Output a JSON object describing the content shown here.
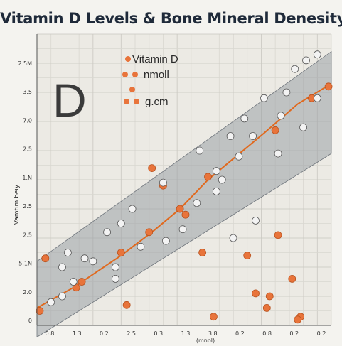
{
  "chart_data": {
    "type": "scatter",
    "title": "Vitamin D Levels & Bone Mineral Denesity",
    "ylabel": "Vamtim beiy",
    "xlabel": "(mnol)",
    "xtick_labels": [
      "0.8",
      "1.3",
      "0.2",
      "2.5",
      "0.3",
      "1.3",
      "3.8",
      "0.2",
      "0.8",
      "0.2",
      "0.2"
    ],
    "ytick_labels": [
      "2.5M",
      "3.5",
      "7.0",
      "2.5",
      "1.N",
      "2.5",
      "2.5",
      "5.1N",
      "2.0",
      "0"
    ],
    "ylim": [
      0,
      10
    ],
    "xlim": [
      0,
      10.5
    ],
    "grid": true,
    "legend_placement": "top-left",
    "legend": [
      "Vitamin D",
      "nmoll",
      "g.cm"
    ],
    "annotation_letter": "D",
    "colors": {
      "orange": "#e8743b",
      "white": "#f3f3f3",
      "line": "#e0691e",
      "band": "#9aa0a6"
    },
    "series": [
      {
        "name": "Vitamin D",
        "marker": "orange",
        "x": [
          0.1,
          1.4,
          3.0,
          4.0,
          5.1,
          6.1,
          8.5,
          9.8,
          10.4,
          0.3,
          1.6,
          4.1,
          4.5,
          5.3,
          5.9,
          6.3,
          7.5,
          7.8,
          8.2,
          8.6,
          9.1,
          9.4,
          3.2,
          8.3,
          9.3
        ],
        "y": [
          0.5,
          1.3,
          2.5,
          3.2,
          4.0,
          5.1,
          6.7,
          7.8,
          8.2,
          2.3,
          1.5,
          5.4,
          4.8,
          3.8,
          2.5,
          0.3,
          2.4,
          1.1,
          0.6,
          3.1,
          1.6,
          0.3,
          0.7,
          1.0,
          0.2
        ]
      },
      {
        "name": "",
        "marker": "white",
        "x": [
          0.5,
          0.9,
          1.3,
          2.0,
          2.5,
          3.0,
          3.7,
          4.5,
          4.6,
          5.2,
          5.8,
          6.4,
          6.9,
          7.4,
          7.7,
          8.1,
          8.7,
          9.2,
          9.5,
          10.0,
          0.9,
          2.8,
          3.4,
          5.7,
          6.6,
          7.2,
          8.9,
          9.6,
          2.8,
          1.1,
          1.7,
          10.0,
          6.4,
          7.0,
          7.8,
          8.6
        ],
        "y": [
          0.8,
          2.0,
          1.5,
          2.2,
          3.2,
          3.5,
          2.7,
          4.9,
          2.9,
          3.3,
          6.0,
          5.3,
          6.5,
          7.1,
          6.5,
          7.8,
          7.2,
          8.8,
          6.8,
          9.3,
          1.0,
          1.6,
          4.0,
          4.2,
          5.0,
          5.8,
          8.0,
          9.1,
          2.0,
          2.5,
          2.3,
          7.8,
          4.6,
          3.0,
          3.6,
          5.9
        ]
      }
    ],
    "trend_line": {
      "x": [
        0.0,
        1.3,
        3.0,
        4.1,
        5.1,
        6.1,
        7.1,
        8.1,
        9.3,
        10.5
      ],
      "y": [
        0.6,
        1.3,
        2.4,
        3.2,
        4.0,
        5.0,
        5.8,
        6.6,
        7.6,
        8.3
      ]
    },
    "confidence_band": {
      "x": [
        0.0,
        10.5
      ],
      "upper": [
        2.2,
        9.4
      ],
      "lower": [
        -0.4,
        5.9
      ]
    }
  }
}
